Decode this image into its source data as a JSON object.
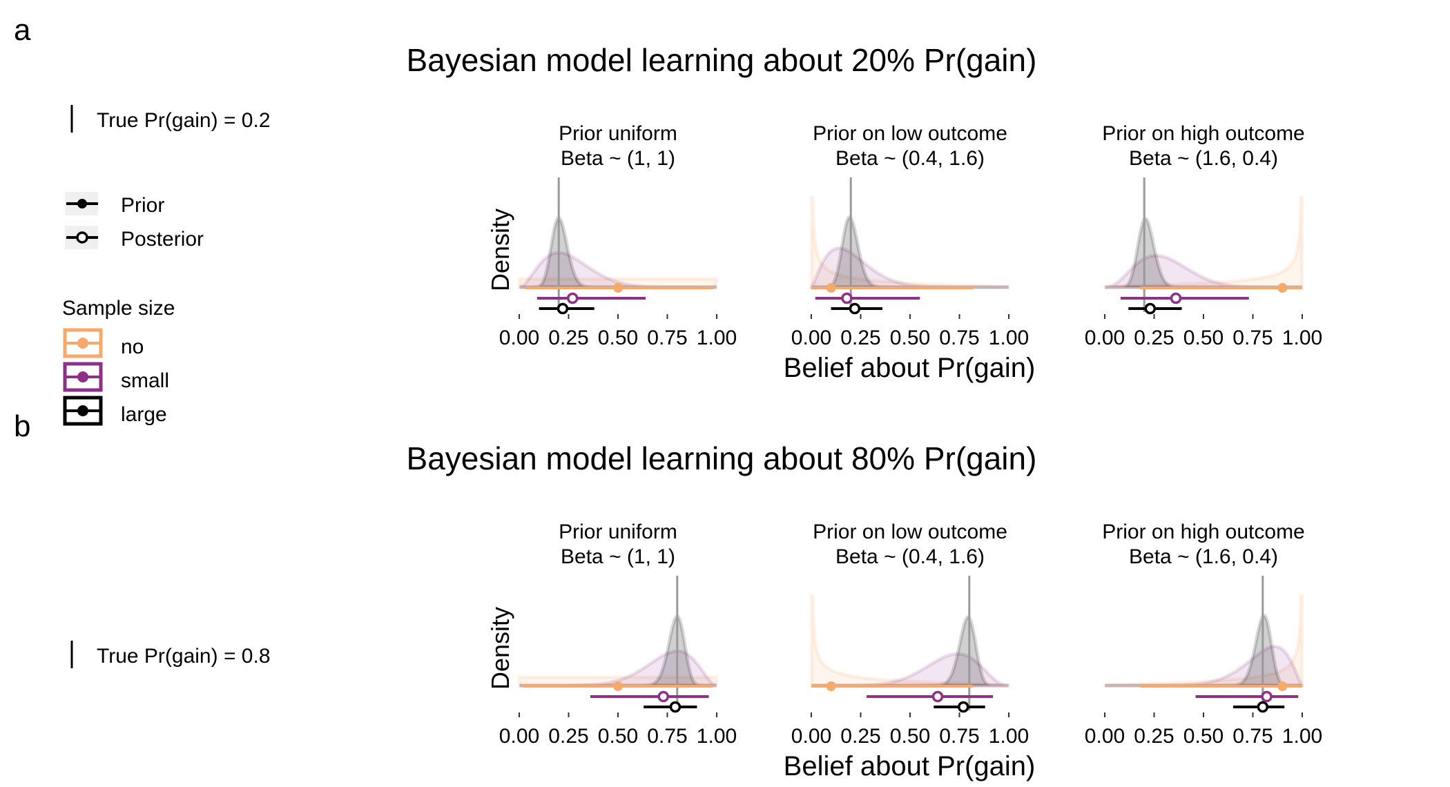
{
  "panel_a_letter": "a",
  "panel_b_letter": "b",
  "legend": {
    "truth_a": "True Pr(gain) = 0.2",
    "truth_b": "True Pr(gain) = 0.8",
    "prior_label": "Prior",
    "posterior_label": "Posterior",
    "sample_size_title": "Sample size",
    "sizes": [
      {
        "label": "no",
        "color": "#F7A96A"
      },
      {
        "label": "small",
        "color": "#8E2F88"
      },
      {
        "label": "large",
        "color": "#000000"
      }
    ]
  },
  "colors": {
    "no": "#F7A96A",
    "small": "#8E2F88",
    "large": "#000000",
    "truth_line": "#999999"
  },
  "chart_data": [
    {
      "type": "density-interval",
      "title": "Bayesian model learning about 20% Pr(gain)",
      "true_value": 0.2,
      "xlabel": "Belief about Pr(gain)",
      "ylabel": "Density",
      "xlim": [
        0,
        1
      ],
      "xticks": [
        "0.00",
        "0.25",
        "0.50",
        "0.75",
        "1.00"
      ],
      "facets": [
        {
          "title_line1": "Prior uniform",
          "title_line2": "Beta ~ (1, 1)",
          "intervals": [
            {
              "size": "no",
              "kind": "prior",
              "point": 0.5,
              "low": 0.03,
              "high": 0.98
            },
            {
              "size": "small",
              "kind": "posterior",
              "point": 0.27,
              "low": 0.09,
              "high": 0.64
            },
            {
              "size": "large",
              "kind": "posterior",
              "point": 0.22,
              "low": 0.1,
              "high": 0.38
            }
          ]
        },
        {
          "title_line1": "Prior on low outcome",
          "title_line2": "Beta ~ (0.4, 1.6)",
          "intervals": [
            {
              "size": "no",
              "kind": "prior",
              "point": 0.1,
              "low": 0.0,
              "high": 0.82
            },
            {
              "size": "small",
              "kind": "posterior",
              "point": 0.18,
              "low": 0.02,
              "high": 0.55
            },
            {
              "size": "large",
              "kind": "posterior",
              "point": 0.22,
              "low": 0.1,
              "high": 0.36
            }
          ]
        },
        {
          "title_line1": "Prior on high outcome",
          "title_line2": "Beta ~ (1.6, 0.4)",
          "intervals": [
            {
              "size": "no",
              "kind": "prior",
              "point": 0.9,
              "low": 0.18,
              "high": 1.0
            },
            {
              "size": "small",
              "kind": "posterior",
              "point": 0.36,
              "low": 0.08,
              "high": 0.73
            },
            {
              "size": "large",
              "kind": "posterior",
              "point": 0.23,
              "low": 0.12,
              "high": 0.39
            }
          ]
        }
      ]
    },
    {
      "type": "density-interval",
      "title": "Bayesian model learning about 80% Pr(gain)",
      "true_value": 0.8,
      "xlabel": "Belief about Pr(gain)",
      "ylabel": "Density",
      "xlim": [
        0,
        1
      ],
      "xticks": [
        "0.00",
        "0.25",
        "0.50",
        "0.75",
        "1.00"
      ],
      "facets": [
        {
          "title_line1": "Prior uniform",
          "title_line2": "Beta ~ (1, 1)",
          "intervals": [
            {
              "size": "no",
              "kind": "prior",
              "point": 0.5,
              "low": 0.02,
              "high": 0.98
            },
            {
              "size": "small",
              "kind": "posterior",
              "point": 0.73,
              "low": 0.36,
              "high": 0.96
            },
            {
              "size": "large",
              "kind": "posterior",
              "point": 0.79,
              "low": 0.63,
              "high": 0.9
            }
          ]
        },
        {
          "title_line1": "Prior on low outcome",
          "title_line2": "Beta ~ (0.4, 1.6)",
          "intervals": [
            {
              "size": "no",
              "kind": "prior",
              "point": 0.1,
              "low": 0.0,
              "high": 0.82
            },
            {
              "size": "small",
              "kind": "posterior",
              "point": 0.64,
              "low": 0.28,
              "high": 0.92
            },
            {
              "size": "large",
              "kind": "posterior",
              "point": 0.77,
              "low": 0.62,
              "high": 0.88
            }
          ]
        },
        {
          "title_line1": "Prior on high outcome",
          "title_line2": "Beta ~ (1.6, 0.4)",
          "intervals": [
            {
              "size": "no",
              "kind": "prior",
              "point": 0.9,
              "low": 0.18,
              "high": 1.0
            },
            {
              "size": "small",
              "kind": "posterior",
              "point": 0.82,
              "low": 0.46,
              "high": 0.98
            },
            {
              "size": "large",
              "kind": "posterior",
              "point": 0.8,
              "low": 0.65,
              "high": 0.91
            }
          ]
        }
      ]
    }
  ]
}
